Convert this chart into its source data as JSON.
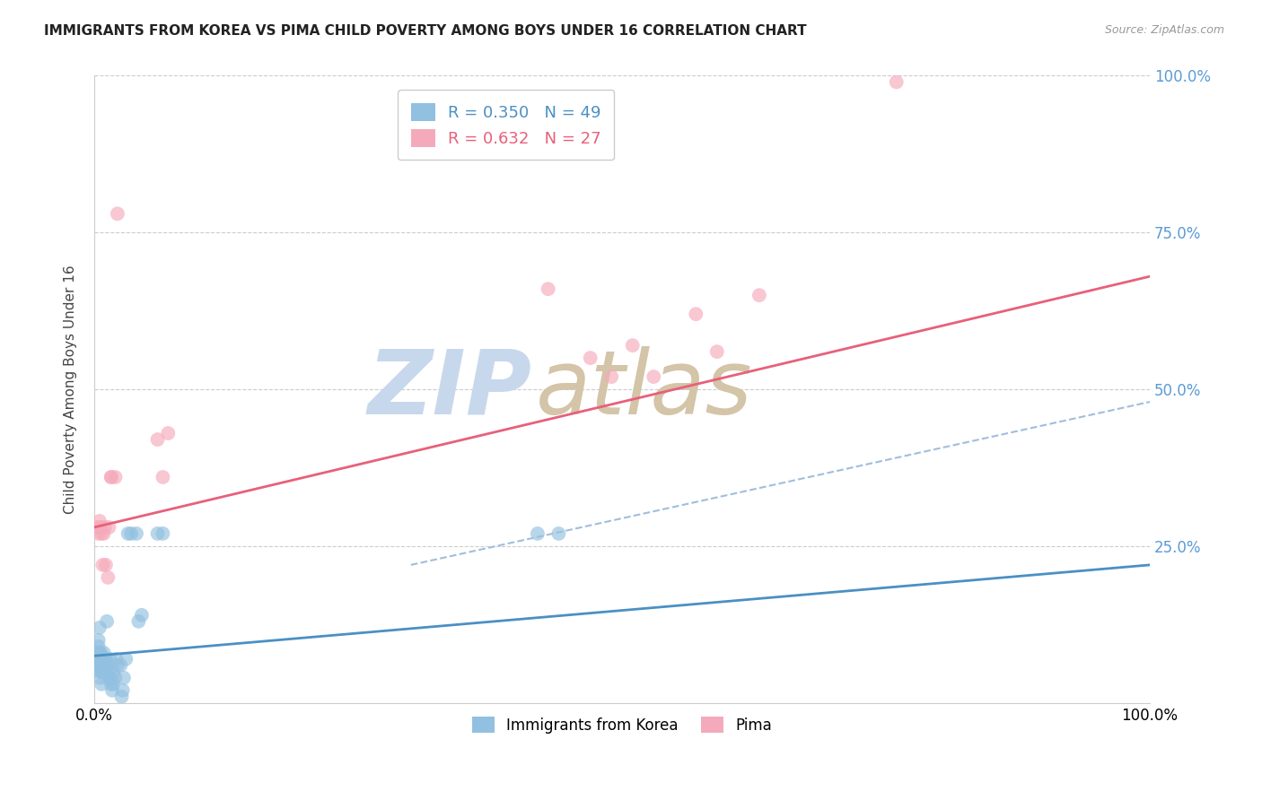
{
  "title": "IMMIGRANTS FROM KOREA VS PIMA CHILD POVERTY AMONG BOYS UNDER 16 CORRELATION CHART",
  "source": "Source: ZipAtlas.com",
  "ylabel": "Child Poverty Among Boys Under 16",
  "r1": 0.35,
  "n1": 49,
  "r2": 0.632,
  "n2": 27,
  "xlim": [
    0.0,
    1.0
  ],
  "ylim": [
    0.0,
    1.0
  ],
  "color_blue": "#92C0E0",
  "color_pink": "#F5AABB",
  "color_line_blue": "#4A90C4",
  "color_line_pink": "#E8607A",
  "color_dashed": "#A0BEDD",
  "color_right_axis": "#5B9BD5",
  "watermark_zip_color": "#C8D8EC",
  "watermark_atlas_color": "#D4C4A8",
  "legend_label1": "Immigrants from Korea",
  "legend_label2": "Pima",
  "blue_scatter": [
    [
      0.003,
      0.06
    ],
    [
      0.003,
      0.08
    ],
    [
      0.004,
      0.09
    ],
    [
      0.004,
      0.1
    ],
    [
      0.005,
      0.05
    ],
    [
      0.005,
      0.07
    ],
    [
      0.005,
      0.08
    ],
    [
      0.005,
      0.12
    ],
    [
      0.006,
      0.04
    ],
    [
      0.006,
      0.06
    ],
    [
      0.006,
      0.07
    ],
    [
      0.006,
      0.08
    ],
    [
      0.007,
      0.03
    ],
    [
      0.007,
      0.05
    ],
    [
      0.007,
      0.06
    ],
    [
      0.008,
      0.05
    ],
    [
      0.008,
      0.07
    ],
    [
      0.009,
      0.05
    ],
    [
      0.009,
      0.08
    ],
    [
      0.01,
      0.06
    ],
    [
      0.01,
      0.07
    ],
    [
      0.011,
      0.07
    ],
    [
      0.012,
      0.06
    ],
    [
      0.012,
      0.13
    ],
    [
      0.013,
      0.05
    ],
    [
      0.014,
      0.04
    ],
    [
      0.015,
      0.04
    ],
    [
      0.015,
      0.07
    ],
    [
      0.016,
      0.03
    ],
    [
      0.017,
      0.02
    ],
    [
      0.018,
      0.03
    ],
    [
      0.018,
      0.05
    ],
    [
      0.02,
      0.04
    ],
    [
      0.021,
      0.07
    ],
    [
      0.022,
      0.06
    ],
    [
      0.025,
      0.06
    ],
    [
      0.026,
      0.01
    ],
    [
      0.027,
      0.02
    ],
    [
      0.028,
      0.04
    ],
    [
      0.03,
      0.07
    ],
    [
      0.032,
      0.27
    ],
    [
      0.035,
      0.27
    ],
    [
      0.04,
      0.27
    ],
    [
      0.042,
      0.13
    ],
    [
      0.045,
      0.14
    ],
    [
      0.06,
      0.27
    ],
    [
      0.065,
      0.27
    ],
    [
      0.42,
      0.27
    ],
    [
      0.44,
      0.27
    ]
  ],
  "pink_scatter": [
    [
      0.003,
      0.28
    ],
    [
      0.004,
      0.27
    ],
    [
      0.005,
      0.29
    ],
    [
      0.006,
      0.28
    ],
    [
      0.007,
      0.27
    ],
    [
      0.008,
      0.22
    ],
    [
      0.009,
      0.27
    ],
    [
      0.01,
      0.28
    ],
    [
      0.011,
      0.22
    ],
    [
      0.013,
      0.2
    ],
    [
      0.014,
      0.28
    ],
    [
      0.016,
      0.36
    ],
    [
      0.016,
      0.36
    ],
    [
      0.02,
      0.36
    ],
    [
      0.022,
      0.78
    ],
    [
      0.06,
      0.42
    ],
    [
      0.065,
      0.36
    ],
    [
      0.07,
      0.43
    ],
    [
      0.43,
      0.66
    ],
    [
      0.47,
      0.55
    ],
    [
      0.49,
      0.52
    ],
    [
      0.51,
      0.57
    ],
    [
      0.53,
      0.52
    ],
    [
      0.57,
      0.62
    ],
    [
      0.59,
      0.56
    ],
    [
      0.63,
      0.65
    ],
    [
      0.76,
      0.99
    ]
  ],
  "blue_line_x": [
    0.0,
    1.0
  ],
  "blue_line_y": [
    0.075,
    0.22
  ],
  "pink_line_x": [
    0.0,
    1.0
  ],
  "pink_line_y": [
    0.28,
    0.68
  ],
  "dashed_line_x": [
    0.3,
    1.0
  ],
  "dashed_line_y": [
    0.22,
    0.48
  ]
}
